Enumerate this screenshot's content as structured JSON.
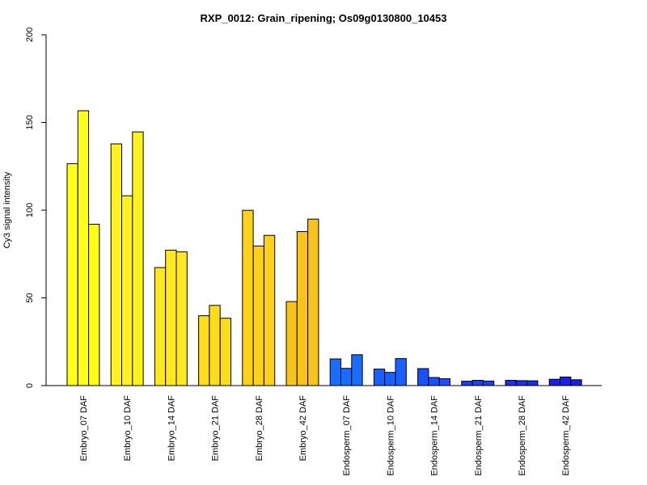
{
  "chart_data": {
    "type": "bar",
    "title": "RXP_0012: Grain_ripening; Os09g0130800_10453",
    "xlabel": "",
    "ylabel": "Cy3 signal intensity",
    "ylim": [
      0,
      200
    ],
    "yticks": [
      0,
      50,
      100,
      150,
      200
    ],
    "grid": false,
    "categories": [
      "Embryo_07 DAF",
      "Embryo_10 DAF",
      "Embryo_14 DAF",
      "Embryo_21 DAF",
      "Embryo_28 DAF",
      "Embryo_42 DAF",
      "Endosperm_07 DAF",
      "Endosperm_10 DAF",
      "Endosperm_14 DAF",
      "Endosperm_21 DAF",
      "Endosperm_28 DAF",
      "Endosperm_42 DAF"
    ],
    "values": [
      [
        126.5,
        156.7,
        92.0
      ],
      [
        137.8,
        108.2,
        144.6
      ],
      [
        67.3,
        77.2,
        76.2
      ],
      [
        39.8,
        45.7,
        38.4
      ],
      [
        99.9,
        79.6,
        85.6
      ],
      [
        47.9,
        87.8,
        94.9
      ],
      [
        15.2,
        9.8,
        17.6
      ],
      [
        9.4,
        7.5,
        15.4
      ],
      [
        9.7,
        4.6,
        3.9
      ],
      [
        2.5,
        3.0,
        2.6
      ],
      [
        3.0,
        2.8,
        2.7
      ],
      [
        3.6,
        4.9,
        3.3
      ]
    ],
    "colors": [
      "#ffff1a",
      "#fff21f",
      "#ffe81f",
      "#fcdd1c",
      "#fcd11c",
      "#f8c41c",
      "#1a6eff",
      "#1a60ff",
      "#1a50ff",
      "#1a40f8",
      "#1a30f0",
      "#1a20e8"
    ]
  }
}
